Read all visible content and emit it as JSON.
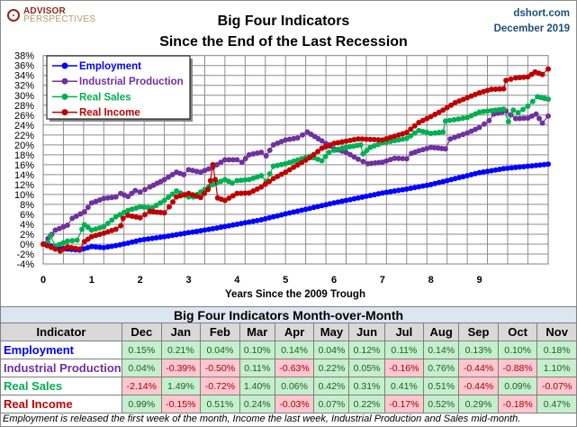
{
  "header": {
    "logo_line1": "ADVISOR",
    "logo_line2": "PERSPECTIVES",
    "title_line1": "Big Four Indicators",
    "title_line2": "Since the End of the Last Recession",
    "source": "dshort.com",
    "date": "December 2019"
  },
  "chart_data": {
    "type": "line",
    "title": "Big Four Indicators Since the End of the Last Recession",
    "xlabel": "Years Since the 2009 Trough",
    "ylabel": "",
    "xlim": [
      0,
      10.42
    ],
    "ylim": [
      -4,
      38
    ],
    "x_ticks": [
      "0",
      "1",
      "2",
      "3",
      "4",
      "5",
      "6",
      "7",
      "8",
      "9"
    ],
    "y_ticks": [
      "-4%",
      "-2%",
      "0%",
      "2%",
      "4%",
      "6%",
      "8%",
      "10%",
      "12%",
      "14%",
      "16%",
      "18%",
      "20%",
      "22%",
      "24%",
      "26%",
      "28%",
      "30%",
      "32%",
      "34%",
      "36%",
      "38%"
    ],
    "grid": true,
    "legend_position": "top-left",
    "series": [
      {
        "name": "Employment",
        "color": "#0000ff",
        "points": [
          [
            0,
            0
          ],
          [
            0.25,
            -0.6
          ],
          [
            0.5,
            -1
          ],
          [
            0.75,
            -1.2
          ],
          [
            1,
            -0.5
          ],
          [
            1.25,
            -0.7
          ],
          [
            1.5,
            -0.3
          ],
          [
            1.75,
            0.2
          ],
          [
            2,
            0.8
          ],
          [
            2.5,
            1.5
          ],
          [
            3,
            2.3
          ],
          [
            3.5,
            3.1
          ],
          [
            4,
            4.0
          ],
          [
            4.5,
            4.9
          ],
          [
            5,
            6.1
          ],
          [
            5.5,
            7.2
          ],
          [
            6,
            8.3
          ],
          [
            6.5,
            9.3
          ],
          [
            7,
            10.3
          ],
          [
            7.5,
            11.1
          ],
          [
            8,
            12.0
          ],
          [
            8.5,
            13.2
          ],
          [
            9,
            14.4
          ],
          [
            9.5,
            15.2
          ],
          [
            10,
            15.7
          ],
          [
            10.42,
            16.1
          ]
        ]
      },
      {
        "name": "Industrial Production",
        "color": "#7030a0",
        "points": [
          [
            0,
            0
          ],
          [
            0.1,
            1.1
          ],
          [
            0.25,
            2.8
          ],
          [
            0.5,
            3.8
          ],
          [
            0.6,
            5.2
          ],
          [
            0.85,
            6.5
          ],
          [
            1,
            8.3
          ],
          [
            1.25,
            9.2
          ],
          [
            1.5,
            9.5
          ],
          [
            1.6,
            10.2
          ],
          [
            1.75,
            9.6
          ],
          [
            1.9,
            10.8
          ],
          [
            2,
            10.5
          ],
          [
            2.2,
            11.5
          ],
          [
            2.5,
            13
          ],
          [
            2.75,
            14.5
          ],
          [
            2.9,
            14
          ],
          [
            3,
            15
          ],
          [
            3.25,
            14.5
          ],
          [
            3.5,
            15.5
          ],
          [
            3.75,
            17
          ],
          [
            4,
            17
          ],
          [
            4.1,
            16.5
          ],
          [
            4.25,
            18
          ],
          [
            4.5,
            18.5
          ],
          [
            4.6,
            17.8
          ],
          [
            4.75,
            20
          ],
          [
            5,
            21
          ],
          [
            5.25,
            21.4
          ],
          [
            5.45,
            22.6
          ],
          [
            5.75,
            20.8
          ],
          [
            6,
            19.2
          ],
          [
            6.25,
            18.5
          ],
          [
            6.5,
            17.1
          ],
          [
            6.7,
            16.2
          ],
          [
            7,
            16.5
          ],
          [
            7.25,
            17.3
          ],
          [
            7.5,
            17.2
          ],
          [
            7.6,
            18.3
          ],
          [
            7.75,
            18.8
          ],
          [
            8,
            19.5
          ],
          [
            8.3,
            19.2
          ],
          [
            8.4,
            21.2
          ],
          [
            8.75,
            22.4
          ],
          [
            9,
            23.5
          ],
          [
            9.2,
            24.9
          ],
          [
            9.3,
            26.2
          ],
          [
            9.55,
            26.8
          ],
          [
            9.75,
            25.3
          ],
          [
            10,
            25.4
          ],
          [
            10.17,
            26.2
          ],
          [
            10.3,
            24.4
          ],
          [
            10.42,
            25.8
          ]
        ]
      },
      {
        "name": "Real Sales",
        "color": "#00b050",
        "points": [
          [
            0,
            0
          ],
          [
            0.1,
            0.3
          ],
          [
            0.15,
            1.7
          ],
          [
            0.25,
            -0.4
          ],
          [
            0.5,
            0.6
          ],
          [
            0.7,
            0.8
          ],
          [
            0.8,
            3
          ],
          [
            0.85,
            3.9
          ],
          [
            1,
            2.8
          ],
          [
            1.25,
            3.5
          ],
          [
            1.5,
            5.5
          ],
          [
            1.75,
            6.8
          ],
          [
            2,
            7.5
          ],
          [
            2.25,
            7.3
          ],
          [
            2.5,
            8.8
          ],
          [
            2.75,
            10.7
          ],
          [
            3,
            9.5
          ],
          [
            3.1,
            9.5
          ],
          [
            3.25,
            10.5
          ],
          [
            3.5,
            12
          ],
          [
            3.75,
            13
          ],
          [
            3.9,
            12.3
          ],
          [
            4,
            12.8
          ],
          [
            4.25,
            13
          ],
          [
            4.5,
            13.8
          ],
          [
            4.6,
            12.6
          ],
          [
            4.75,
            15.7
          ],
          [
            5,
            16.2
          ],
          [
            5.5,
            17.7
          ],
          [
            5.75,
            16.8
          ],
          [
            5.9,
            18.5
          ],
          [
            6,
            18.9
          ],
          [
            6.25,
            19.5
          ],
          [
            6.55,
            20
          ],
          [
            6.6,
            18.2
          ],
          [
            6.75,
            19.5
          ],
          [
            7,
            20.4
          ],
          [
            7.5,
            21.3
          ],
          [
            7.75,
            22.9
          ],
          [
            8,
            22.3
          ],
          [
            8.25,
            22.6
          ],
          [
            8.3,
            24.8
          ],
          [
            8.75,
            25.5
          ],
          [
            9,
            26.6
          ],
          [
            9.5,
            27.2
          ],
          [
            9.6,
            24.7
          ],
          [
            9.7,
            27
          ],
          [
            9.8,
            26.5
          ],
          [
            10,
            27.8
          ],
          [
            10.2,
            29.7
          ],
          [
            10.42,
            29.2
          ]
        ]
      },
      {
        "name": "Real Income",
        "color": "#c00000",
        "points": [
          [
            0,
            0
          ],
          [
            0.25,
            -1
          ],
          [
            0.35,
            -1.4
          ],
          [
            0.5,
            -0.6
          ],
          [
            0.75,
            -1
          ],
          [
            0.85,
            0.5
          ],
          [
            1,
            1.5
          ],
          [
            1.25,
            2.2
          ],
          [
            1.5,
            3
          ],
          [
            1.6,
            3.7
          ],
          [
            1.65,
            5.2
          ],
          [
            1.75,
            5.8
          ],
          [
            2,
            5.3
          ],
          [
            2.2,
            6.6
          ],
          [
            2.5,
            6.3
          ],
          [
            2.6,
            7.5
          ],
          [
            2.75,
            9.5
          ],
          [
            3,
            10.2
          ],
          [
            3.25,
            9.4
          ],
          [
            3.4,
            11
          ],
          [
            3.45,
            12.8
          ],
          [
            3.5,
            16
          ],
          [
            3.55,
            13
          ],
          [
            3.6,
            9.3
          ],
          [
            3.75,
            8.8
          ],
          [
            4,
            10.2
          ],
          [
            4.25,
            10.3
          ],
          [
            4.5,
            11.5
          ],
          [
            4.75,
            13.2
          ],
          [
            5,
            14.5
          ],
          [
            5.5,
            17.4
          ],
          [
            5.75,
            19.3
          ],
          [
            6,
            20.3
          ],
          [
            6.5,
            21.2
          ],
          [
            7,
            21
          ],
          [
            7.5,
            22.5
          ],
          [
            7.75,
            24.5
          ],
          [
            8,
            25.7
          ],
          [
            8.25,
            27
          ],
          [
            8.5,
            28.5
          ],
          [
            8.75,
            29.5
          ],
          [
            9,
            30.5
          ],
          [
            9.25,
            31.2
          ],
          [
            9.5,
            31.3
          ],
          [
            9.55,
            33
          ],
          [
            9.75,
            33.5
          ],
          [
            10,
            33.7
          ],
          [
            10.15,
            34.7
          ],
          [
            10.3,
            34.2
          ],
          [
            10.42,
            35.3
          ]
        ]
      }
    ]
  },
  "table": {
    "title": "Big Four Indicators Month-over-Month",
    "header": [
      "Indicator",
      "Dec",
      "Jan",
      "Feb",
      "Mar",
      "Apr",
      "May",
      "Jun",
      "Jul",
      "Aug",
      "Sep",
      "Oct",
      "Nov"
    ],
    "rows": [
      {
        "name": "Employment",
        "color": "#0000ff",
        "values": [
          "0.15%",
          "0.21%",
          "0.04%",
          "0.10%",
          "0.14%",
          "0.04%",
          "0.12%",
          "0.11%",
          "0.14%",
          "0.13%",
          "0.10%",
          "0.18%"
        ]
      },
      {
        "name": "Industrial Production",
        "color": "#7030a0",
        "values": [
          "0.04%",
          "-0.39%",
          "-0.50%",
          "0.11%",
          "-0.63%",
          "0.22%",
          "0.05%",
          "-0.16%",
          "0.76%",
          "-0.44%",
          "-0.88%",
          "1.10%"
        ]
      },
      {
        "name": "Real Sales",
        "color": "#00b050",
        "values": [
          "-2.14%",
          "1.49%",
          "-0.72%",
          "1.40%",
          "0.06%",
          "0.42%",
          "0.31%",
          "0.41%",
          "0.51%",
          "-0.44%",
          "0.09%",
          "-0.07%"
        ]
      },
      {
        "name": "Real Income",
        "color": "#c00000",
        "values": [
          "0.99%",
          "-0.15%",
          "0.51%",
          "0.24%",
          "-0.03%",
          "0.07%",
          "0.22%",
          "-0.17%",
          "0.52%",
          "0.29%",
          "-0.18%",
          "0.47%"
        ]
      }
    ],
    "positive_color": "#c6efce",
    "negative_color": "#ffc7ce"
  },
  "footnote": "Employment is released the first week of the month, Income the last week, Industrial Production and Sales mid-month."
}
